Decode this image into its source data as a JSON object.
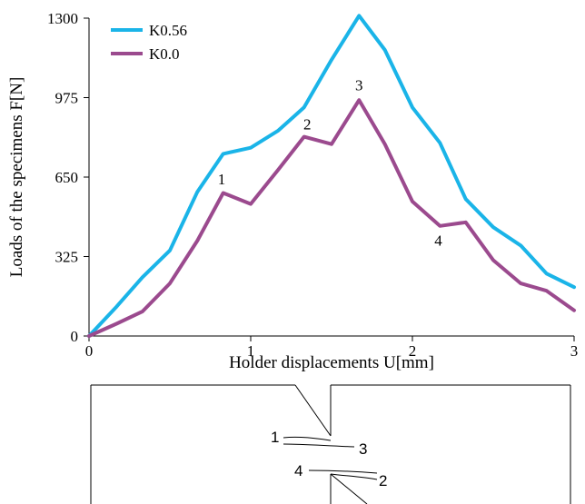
{
  "chart_data": {
    "type": "line",
    "xlabel": "Holder displacements U[mm]",
    "ylabel": "Loads of the specimens F[N]",
    "xlim": [
      0,
      3
    ],
    "ylim": [
      0,
      1300
    ],
    "xticks": [
      0,
      1,
      2,
      3
    ],
    "yticks": [
      0,
      325,
      650,
      975,
      1300
    ],
    "legend_position": "top-left",
    "series": [
      {
        "name": "K0.56",
        "color": "#1AB4E8",
        "x": [
          0,
          0.17,
          0.33,
          0.5,
          0.67,
          0.83,
          1.0,
          1.17,
          1.33,
          1.5,
          1.67,
          1.83,
          2.0,
          2.17,
          2.33,
          2.5,
          2.67,
          2.83,
          3.0
        ],
        "y": [
          0,
          120,
          240,
          350,
          590,
          745,
          770,
          840,
          935,
          1130,
          1310,
          1170,
          935,
          790,
          560,
          445,
          370,
          255,
          200
        ]
      },
      {
        "name": "K0.0",
        "color": "#9B4A8E",
        "x": [
          0,
          0.17,
          0.33,
          0.5,
          0.67,
          0.83,
          1.0,
          1.17,
          1.33,
          1.5,
          1.67,
          1.83,
          2.0,
          2.17,
          2.33,
          2.5,
          2.67,
          2.83,
          3.0
        ],
        "y": [
          0,
          50,
          100,
          215,
          390,
          585,
          540,
          680,
          815,
          785,
          965,
          785,
          550,
          450,
          465,
          310,
          215,
          185,
          105
        ]
      }
    ],
    "annotations": [
      {
        "text": "1",
        "x": 0.82,
        "y": 620
      },
      {
        "text": "2",
        "x": 1.35,
        "y": 845
      },
      {
        "text": "3",
        "x": 1.67,
        "y": 1005
      },
      {
        "text": "4",
        "x": 2.16,
        "y": 370
      }
    ]
  },
  "specimen": {
    "labels": [
      "1",
      "3",
      "4",
      "2"
    ]
  }
}
